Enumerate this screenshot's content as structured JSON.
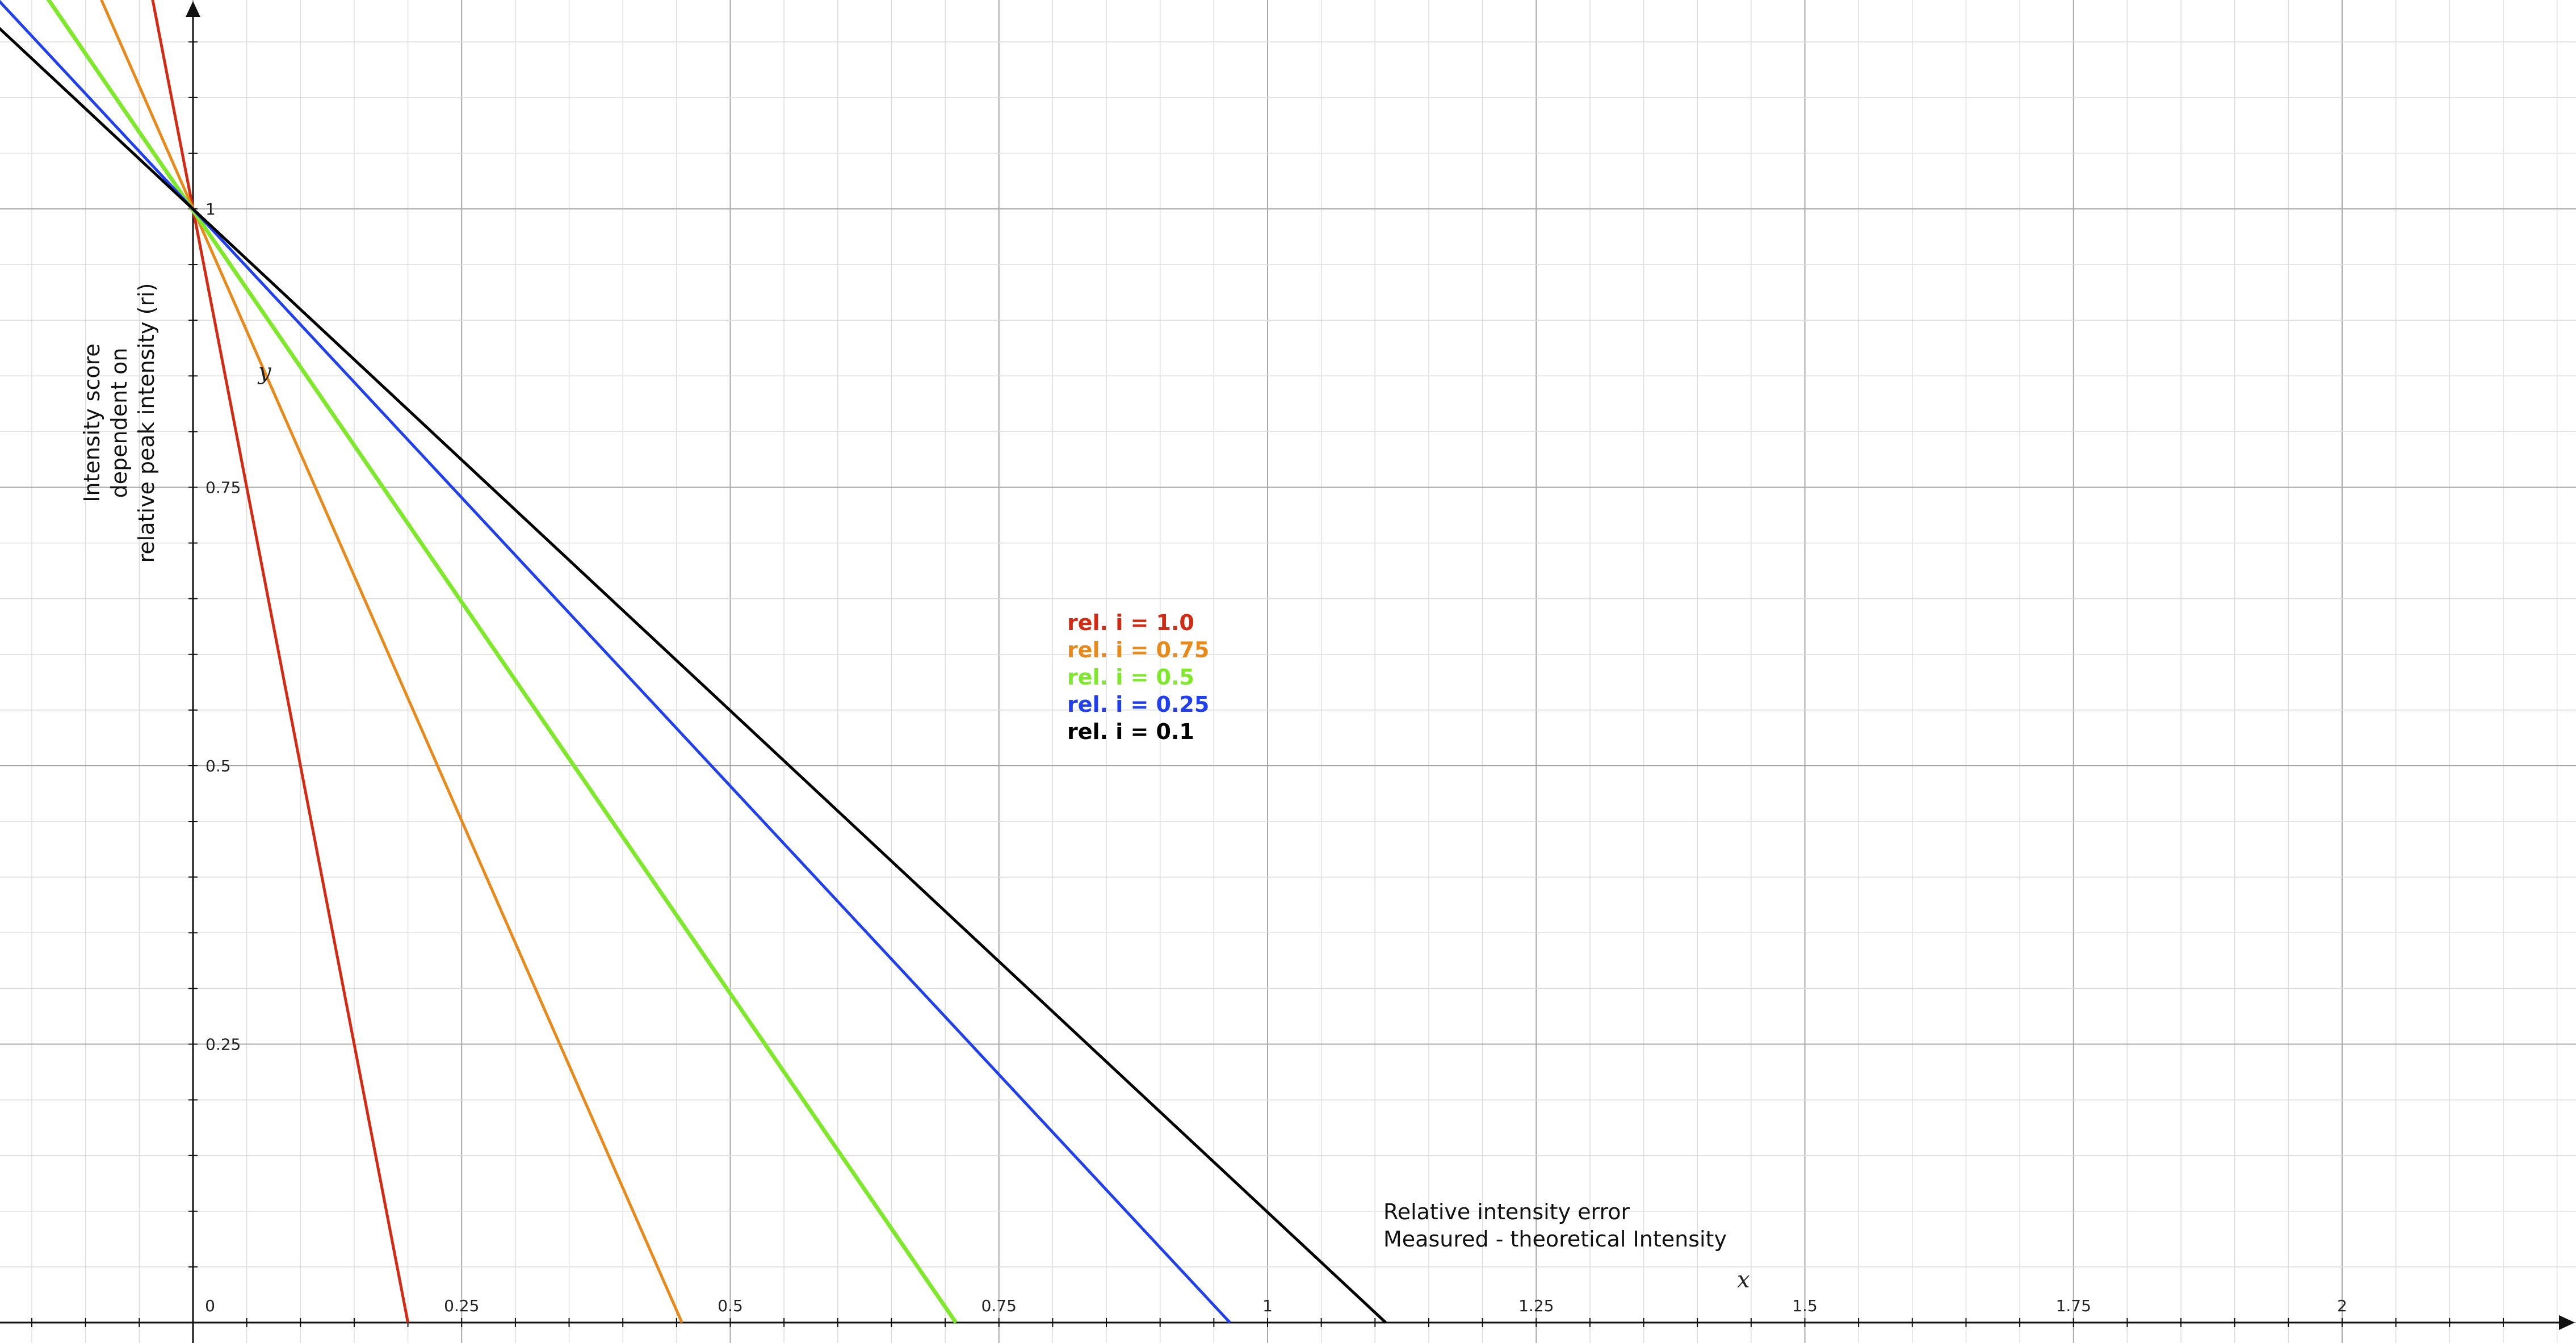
{
  "chart_data": {
    "type": "line",
    "xlim": [
      -0.18,
      2.2
    ],
    "ylim": [
      -0.02,
      1.19
    ],
    "x_ticks": [
      {
        "value": 0,
        "label": "0"
      },
      {
        "value": 0.25,
        "label": "0.25"
      },
      {
        "value": 0.5,
        "label": "0.5"
      },
      {
        "value": 0.75,
        "label": "0.75"
      },
      {
        "value": 1,
        "label": "1"
      },
      {
        "value": 1.25,
        "label": "1.25"
      },
      {
        "value": 1.5,
        "label": "1.5"
      },
      {
        "value": 1.75,
        "label": "1.75"
      },
      {
        "value": 2,
        "label": "2"
      }
    ],
    "y_ticks": [
      {
        "value": 0.25,
        "label": "0.25"
      },
      {
        "value": 0.5,
        "label": "0.5"
      },
      {
        "value": 0.75,
        "label": "0.75"
      },
      {
        "value": 1,
        "label": "1"
      }
    ],
    "x_var": "x",
    "y_var": "y",
    "xlabel": [
      "Relative intensity error",
      "Measured - theoretical Intensity"
    ],
    "ylabel": [
      "Intensity score",
      "dependent on",
      "relative peak intensity (ri)"
    ],
    "grid": true,
    "legend_position": "center",
    "series": [
      {
        "name": "rel. i = 1.0",
        "color": "#d42a14",
        "x": [
          -0.2,
          0.2
        ],
        "y": [
          2.0,
          0.0
        ]
      },
      {
        "name": "rel. i = 0.75",
        "color": "#e8891a",
        "x": [
          -0.2,
          0.455
        ],
        "y": [
          1.44,
          0.0
        ]
      },
      {
        "name": "rel. i = 0.5",
        "color": "#7ee82a",
        "x": [
          -0.2,
          0.71
        ],
        "y": [
          1.28,
          0.0
        ]
      },
      {
        "name": "rel. i = 0.25",
        "color": "#1f3ff0",
        "x": [
          -0.2,
          0.965
        ],
        "y": [
          1.207,
          0.0
        ]
      },
      {
        "name": "rel. i = 0.1",
        "color": "#000000",
        "x": [
          -0.2,
          1.11
        ],
        "y": [
          1.18,
          0.0
        ]
      }
    ]
  }
}
